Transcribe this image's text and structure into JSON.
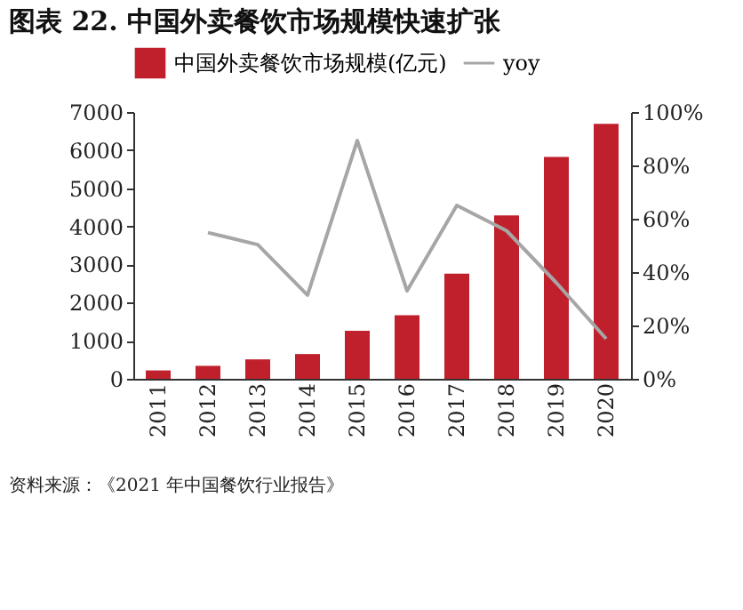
{
  "chart_data": {
    "type": "bar",
    "title": "图表 22. 中国外卖餐饮市场规模快速扩张",
    "categories": [
      "2011",
      "2012",
      "2013",
      "2014",
      "2015",
      "2016",
      "2017",
      "2018",
      "2019",
      "2020"
    ],
    "series": [
      {
        "name": "中国外卖餐饮市场规模(亿元)",
        "color": "#c0202c",
        "values": [
          220,
          340,
          510,
          650,
          1260,
          1670,
          2760,
          4290,
          5820,
          6690
        ]
      },
      {
        "name": "yoy",
        "type": "line",
        "axis": "y2",
        "color": "#a6a6a6",
        "values": [
          null,
          54.8,
          50.3,
          31.4,
          89.3,
          33,
          65,
          55.5,
          36,
          15
        ]
      }
    ],
    "ylim": [
      0,
      7000
    ],
    "yticks": [
      0,
      1000,
      2000,
      3000,
      4000,
      5000,
      6000,
      7000
    ],
    "y2lim": [
      0,
      100
    ],
    "y2ticks": [
      {
        "value": 0,
        "label": "0%"
      },
      {
        "value": 20,
        "label": "20%"
      },
      {
        "value": 40,
        "label": "40%"
      },
      {
        "value": 60,
        "label": "60%"
      },
      {
        "value": 80,
        "label": "80%"
      },
      {
        "value": 100,
        "label": "100%"
      }
    ],
    "legend": "top",
    "grid": false,
    "annotations": [
      "资料来源：《2021 年中国餐饮行业报告》"
    ]
  }
}
